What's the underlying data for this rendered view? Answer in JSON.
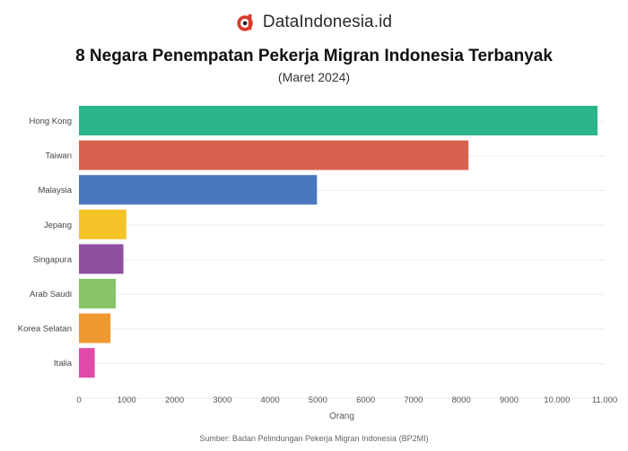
{
  "brand": {
    "name": "DataIndonesia.id",
    "logo_color": "#d93a2b"
  },
  "chart_data": {
    "type": "bar",
    "orientation": "horizontal",
    "title": "8 Negara Penempatan Pekerja Migran Indonesia Terbanyak",
    "subtitle": "(Maret 2024)",
    "xlabel": "Orang",
    "ylabel": "",
    "categories": [
      "Hong Kong",
      "Taiwan",
      "Malaysia",
      "Jepang",
      "Singapura",
      "Arab Saudi",
      "Korea Selatan",
      "Italia"
    ],
    "values": [
      10850,
      8150,
      4980,
      990,
      930,
      770,
      660,
      330
    ],
    "colors": [
      "#2bb58b",
      "#d9624f",
      "#4a78bf",
      "#f5c327",
      "#8e4fa0",
      "#88c46a",
      "#ee9a30",
      "#e04aa8"
    ],
    "xlim": [
      0,
      11000
    ],
    "ticks": [
      0,
      1000,
      2000,
      3000,
      4000,
      5000,
      6000,
      7000,
      8000,
      9000,
      10000,
      11000
    ],
    "tick_labels": [
      "0",
      "1000",
      "2000",
      "3000",
      "4000",
      "5000",
      "6000",
      "7000",
      "8000",
      "9000",
      "10.000",
      "11.000"
    ],
    "grid": true,
    "legend": "none"
  },
  "source": "Sumber: Badan Pelindungan Pekerja Migran Indonesia (BP2MI)"
}
